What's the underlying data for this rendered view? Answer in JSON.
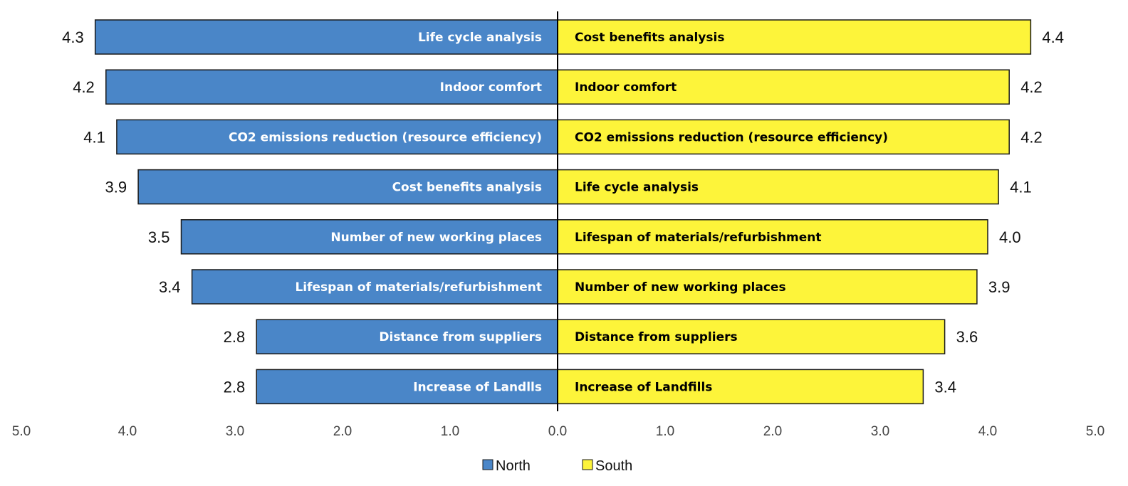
{
  "chart_data": {
    "type": "bar",
    "orientation": "horizontal-butterfly",
    "title": "",
    "xlabel": "",
    "ylabel": "",
    "xlim": [
      -5,
      5
    ],
    "grid": false,
    "legend_position": "bottom-center",
    "series": [
      {
        "name": "North",
        "color": "#4a86c8",
        "side": "left",
        "label_color": "#ffffff",
        "categories": [
          "Life cycle analysis",
          "Indoor comfort",
          "CO2 emissions reduction (resource efficiency)",
          "Cost benefits analysis",
          "Number of new working places",
          "Lifespan of materials/refurbishment",
          "Distance from suppliers",
          "Increase of Landlls"
        ],
        "values": [
          4.3,
          4.2,
          4.1,
          3.9,
          3.5,
          3.4,
          2.8,
          2.8
        ],
        "value_labels": [
          "4.3",
          "4.2",
          "4.1",
          "3.9",
          "3.5",
          "3.4",
          "2.8",
          "2.8"
        ]
      },
      {
        "name": "South",
        "color": "#fdf43a",
        "side": "right",
        "label_color": "#000000",
        "categories": [
          "Cost benefits analysis",
          "Indoor comfort",
          "CO2 emissions reduction (resource efficiency)",
          "Life cycle analysis",
          "Lifespan of materials/refurbishment",
          "Number of new working places",
          "Distance from suppliers",
          "Increase of Landfills"
        ],
        "values": [
          4.4,
          4.2,
          4.2,
          4.1,
          4.0,
          3.9,
          3.6,
          3.4
        ],
        "value_labels": [
          "4.4",
          "4.2",
          "4.2",
          "4.1",
          "4.0",
          "3.9",
          "3.6",
          "3.4"
        ]
      }
    ],
    "x_ticks": {
      "values": [
        -5,
        -4,
        -3,
        -2,
        -1,
        0,
        1,
        2,
        3,
        4,
        5
      ],
      "labels": [
        "5.0",
        "4.0",
        "3.0",
        "2.0",
        "1.0",
        "0.0",
        "1.0",
        "2.0",
        "3.0",
        "4.0",
        "5.0"
      ]
    },
    "legend": [
      "North",
      "South"
    ]
  }
}
